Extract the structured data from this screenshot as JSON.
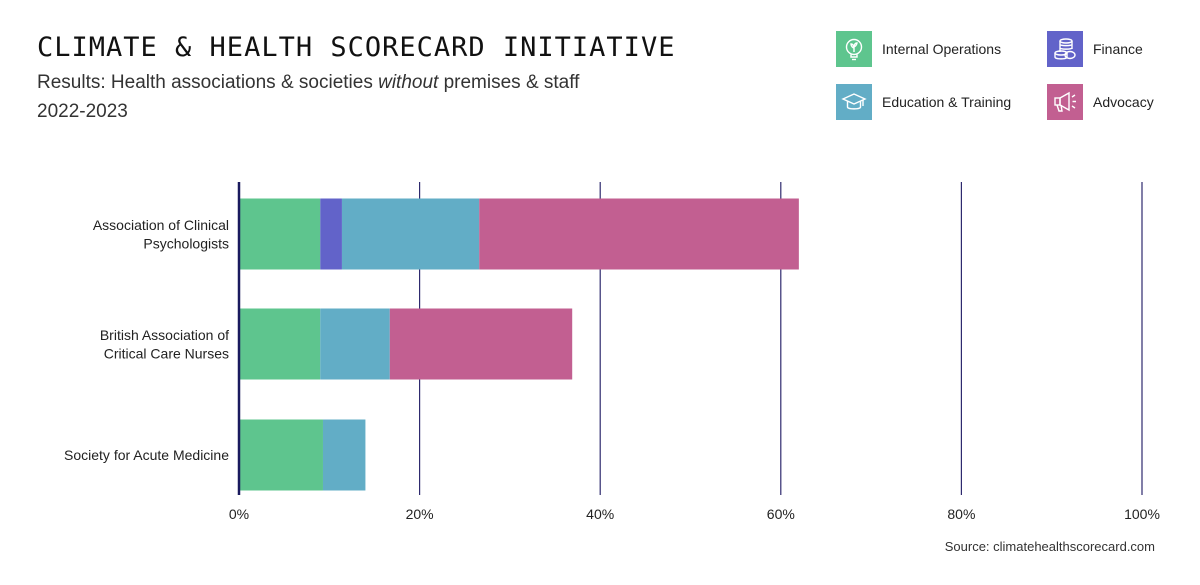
{
  "header": {
    "title": "CLIMATE & HEALTH SCORECARD INITIATIVE",
    "subtitle_prefix": "Results: Health associations & societies ",
    "subtitle_emphasis": "without",
    "subtitle_suffix": " premises & staff",
    "period": "2022-2023"
  },
  "legend": [
    {
      "label": "Internal Operations",
      "color": "#5ec58e",
      "icon": "lightbulb-leaf-icon"
    },
    {
      "label": "Finance",
      "color": "#6263c9",
      "icon": "coin-stack-icon"
    },
    {
      "label": "Education & Training",
      "color": "#62adc6",
      "icon": "graduation-cap-icon"
    },
    {
      "label": "Advocacy",
      "color": "#c25f91",
      "icon": "megaphone-icon"
    }
  ],
  "chart_data": {
    "type": "bar",
    "orientation": "horizontal",
    "stacked": true,
    "categories": [
      [
        "Association of Clinical",
        "Psychologists"
      ],
      [
        "British Association of",
        "Critical Care Nurses"
      ],
      [
        "Society for Acute Medicine"
      ]
    ],
    "series": [
      {
        "name": "Internal Operations",
        "color": "#5ec58e",
        "values": [
          9,
          9,
          9.3
        ]
      },
      {
        "name": "Finance",
        "color": "#6263c9",
        "values": [
          2.4,
          0,
          0
        ]
      },
      {
        "name": "Education & Training",
        "color": "#62adc6",
        "values": [
          15.2,
          7.7,
          4.7
        ]
      },
      {
        "name": "Advocacy",
        "color": "#c25f91",
        "values": [
          35.4,
          20.2,
          0
        ]
      }
    ],
    "xlim": [
      0,
      100
    ],
    "xticks": [
      0,
      20,
      40,
      60,
      80,
      100
    ],
    "xtick_labels": [
      "0%",
      "20%",
      "40%",
      "60%",
      "80%",
      "100%"
    ],
    "grid": true
  },
  "footer": {
    "source": "Source: climatehealthscorecard.com"
  }
}
